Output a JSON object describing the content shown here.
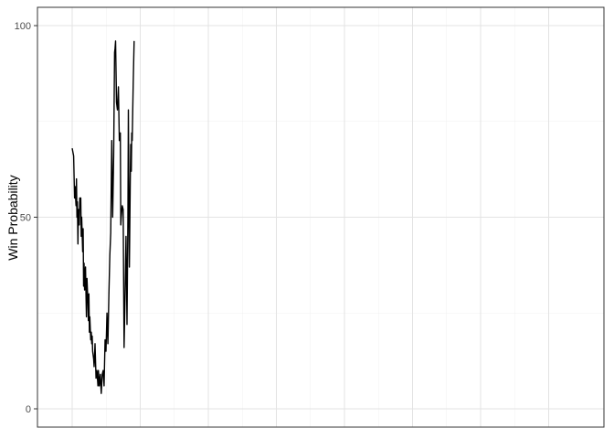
{
  "chart_data": {
    "type": "line",
    "title": "",
    "xlabel": "",
    "ylabel": "Win Probability",
    "ylim": [
      0,
      100
    ],
    "yticks": [
      0,
      50,
      100
    ],
    "xlim": [
      0,
      100
    ],
    "grid": true,
    "legend": "none",
    "line_color": "#000000",
    "series": [
      {
        "x": [
          0.0,
          0.3,
          0.5,
          0.6,
          0.8,
          0.9,
          1.0,
          1.1,
          1.2,
          1.3,
          1.5,
          1.6,
          1.7,
          1.8,
          1.9,
          2.0,
          2.2,
          2.3,
          2.4,
          2.5,
          2.6,
          2.8,
          2.9,
          3.0,
          3.1,
          3.3,
          3.4,
          3.5,
          3.6,
          3.7,
          3.9,
          4.0,
          4.1,
          4.2,
          4.3,
          4.5,
          4.6,
          4.7,
          4.8,
          5.0,
          5.2,
          5.4,
          5.5,
          5.7,
          5.9,
          6.1,
          6.3,
          6.5,
          6.7,
          6.9,
          7.1,
          7.3,
          7.5,
          7.7,
          7.9,
          8.1,
          8.3,
          8.5,
          8.7,
          8.9,
          9.0,
          9.1,
          9.3,
          9.5,
          9.7,
          9.9,
          10.1,
          10.2,
          10.3,
          10.5,
          10.7,
          10.9,
          11.1,
          11.3,
          11.5,
          11.7,
          11.8,
          12.0,
          12.2,
          12.3,
          12.4,
          12.5,
          12.6,
          12.8,
          13.0
        ],
        "y": [
          68,
          66,
          55,
          58,
          53,
          60,
          50,
          54,
          43,
          52,
          48,
          55,
          53,
          55,
          45,
          50,
          41,
          47,
          32,
          38,
          31,
          37,
          30,
          24,
          34,
          28,
          23,
          30,
          20,
          24,
          18,
          20,
          17,
          19,
          15,
          13,
          11,
          14,
          17,
          8,
          10,
          6,
          10,
          6,
          9,
          4,
          9,
          10,
          6,
          18,
          15,
          25,
          17,
          30,
          40,
          46,
          70,
          50,
          66,
          93,
          94,
          96,
          80,
          78,
          84,
          70,
          72,
          48,
          50,
          53,
          52,
          16,
          30,
          45,
          22,
          50,
          78,
          37,
          60,
          69,
          62,
          72,
          70,
          85,
          96
        ]
      }
    ]
  }
}
